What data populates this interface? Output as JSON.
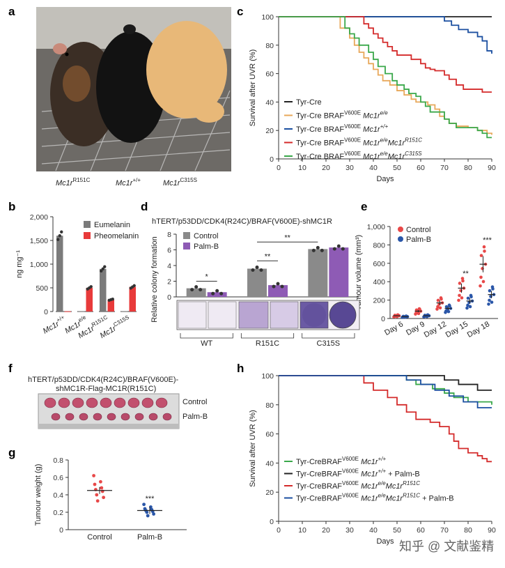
{
  "panel_labels": {
    "a": "a",
    "b": "b",
    "c": "c",
    "d": "d",
    "e": "e",
    "f": "f",
    "g": "g",
    "h": "h"
  },
  "panel_a": {
    "genotypes": [
      {
        "base": "Mc1r",
        "sup": "R151C"
      },
      {
        "base": "Mc1r",
        "sup": "+/+"
      },
      {
        "base": "Mc1r",
        "sup": "C315S"
      }
    ]
  },
  "panel_f": {
    "title_line1": "hTERT/p53DD/CDK4(R24C)/BRAF(V600E)-",
    "title_line2": "shMC1R-Flag-MC1R(R151C)",
    "row_labels": [
      "Control",
      "Palm-B"
    ]
  },
  "watermark": "知乎 @ 文献鉴精",
  "chart_data": [
    {
      "id": "c",
      "type": "line",
      "step": true,
      "title": "",
      "xlabel": "Days",
      "ylabel": "Survival after UVR (%)",
      "xlim": [
        0,
        90
      ],
      "ylim": [
        0,
        100
      ],
      "xticks": [
        "0",
        "10",
        "20",
        "30",
        "40",
        "50",
        "60",
        "70",
        "80",
        "90"
      ],
      "yticks": [
        "0",
        "20",
        "40",
        "60",
        "80",
        "100"
      ],
      "series": [
        {
          "name": "Tyr-Cre",
          "color": "#222222",
          "legend": {
            "pre": "Tyr-Cre",
            "sup": "",
            "mid": "",
            "it": "",
            "itsup": ""
          },
          "x": [
            0,
            90
          ],
          "y": [
            100,
            100
          ]
        },
        {
          "name": "Tyr-Cre BRAF V600E Mc1r e/e",
          "color": "#e8a85a",
          "legend": {
            "pre": "Tyr-Cre BRAF",
            "sup": "V600E",
            "mid": "Mc1r",
            "it": "",
            "itsup": "e/e"
          },
          "x": [
            0,
            23,
            26,
            30,
            32,
            34,
            36,
            38,
            40,
            42,
            44,
            47,
            50,
            53,
            56,
            58,
            60,
            63,
            66,
            68,
            70,
            72,
            75,
            80,
            84,
            88,
            90
          ],
          "y": [
            100,
            100,
            92,
            85,
            80,
            75,
            71,
            67,
            63,
            59,
            55,
            52,
            48,
            45,
            42,
            40,
            40,
            38,
            35,
            30,
            28,
            25,
            23,
            22,
            20,
            18,
            17
          ]
        },
        {
          "name": "Tyr-Cre BRAF V600E Mc1r +/+",
          "color": "#1b4fa0",
          "legend": {
            "pre": "Tyr-Cre BRAF",
            "sup": "V600E",
            "mid": "Mc1r",
            "it": "",
            "itsup": "+/+"
          },
          "x": [
            0,
            66,
            70,
            73,
            76,
            80,
            84,
            86,
            88,
            90
          ],
          "y": [
            100,
            100,
            97,
            94,
            91,
            89,
            86,
            83,
            76,
            74
          ]
        },
        {
          "name": "Tyr-Cre BRAF V600E Mc1r e/e Mc1r R151C",
          "color": "#d42a2a",
          "legend": {
            "pre": "Tyr-Cre BRAF",
            "sup": "V600E",
            "mid": "Mc1r",
            "it": "e/e",
            "itsup": "R151C"
          },
          "x": [
            0,
            34,
            36,
            38,
            40,
            42,
            44,
            46,
            48,
            50,
            53,
            56,
            60,
            62,
            64,
            66,
            70,
            72,
            75,
            78,
            86,
            90
          ],
          "y": [
            100,
            100,
            95,
            92,
            88,
            85,
            82,
            79,
            76,
            73,
            73,
            70,
            67,
            64,
            63,
            62,
            59,
            56,
            52,
            49,
            47,
            47
          ]
        },
        {
          "name": "Tyr-Cre BRAF V600E Mc1r e/e Mc1r C315S",
          "color": "#3aa84a",
          "legend": {
            "pre": "Tyr-Cre BRAF",
            "sup": "V600E",
            "mid": "Mc1r",
            "it": "e/e",
            "itsup": "C315S"
          },
          "x": [
            0,
            25,
            28,
            30,
            32,
            34,
            38,
            40,
            42,
            45,
            48,
            50,
            53,
            55,
            58,
            60,
            62,
            64,
            68,
            70,
            72,
            75,
            80,
            84,
            86,
            88,
            90
          ],
          "y": [
            100,
            100,
            92,
            88,
            85,
            80,
            75,
            70,
            65,
            60,
            55,
            52,
            49,
            46,
            44,
            40,
            37,
            33,
            33,
            28,
            25,
            22,
            22,
            20,
            18,
            15,
            15
          ]
        }
      ]
    },
    {
      "id": "b",
      "type": "bar",
      "title": "",
      "xlabel": "",
      "ylabel": "ng mg⁻¹",
      "ylim": [
        0,
        2000
      ],
      "yticks": [
        "0",
        "500",
        "1,000",
        "1,500",
        "2,000"
      ],
      "categories": [
        {
          "base": "Mc1r",
          "sup": "+/+"
        },
        {
          "base": "Mc1r",
          "sup": "e/e"
        },
        {
          "base": "Mc1r",
          "sup": "R151C"
        },
        {
          "base": "Mc1r",
          "sup": "C315S"
        }
      ],
      "series": [
        {
          "name": "Eumelanin",
          "color": "#7b7b7b",
          "values": [
            1600,
            5,
            900,
            5
          ]
        },
        {
          "name": "Pheomelanin",
          "color": "#e83a3a",
          "values": [
            5,
            500,
            250,
            520
          ]
        }
      ]
    },
    {
      "id": "d",
      "type": "bar",
      "title": "hTERT/p53DD/CDK4(R24C)/BRAF(V600E)-shMC1R",
      "xlabel": "",
      "ylabel": "Relative colony formation",
      "ylim": [
        0,
        8
      ],
      "yticks": [
        "0",
        "2",
        "4",
        "6",
        "8"
      ],
      "categories": [
        "WT",
        "R151C",
        "C315S"
      ],
      "series": [
        {
          "name": "Control",
          "color": "#8a8a8a",
          "values": [
            1.1,
            3.6,
            6.1
          ]
        },
        {
          "name": "Palm-B",
          "color": "#8e5bb5",
          "values": [
            0.6,
            1.5,
            6.3
          ]
        }
      ],
      "significance": [
        "*",
        "**",
        "**"
      ]
    },
    {
      "id": "e",
      "type": "scatter",
      "title": "",
      "xlabel": "",
      "ylabel": "Tumour volume (mm³)",
      "ylim": [
        0,
        1000
      ],
      "yticks": [
        "0",
        "200",
        "400",
        "600",
        "800",
        "1,000"
      ],
      "categories": [
        "Day 6",
        "Day 9",
        "Day 12",
        "Day 15",
        "Day 18"
      ],
      "series": [
        {
          "name": "Control",
          "color": "#e84848",
          "means": [
            30,
            80,
            170,
            330,
            590
          ]
        },
        {
          "name": "Palm-B",
          "color": "#2a56a8",
          "means": [
            20,
            30,
            110,
            190,
            260
          ]
        }
      ],
      "significance": [
        "",
        "",
        "",
        "**",
        "***"
      ]
    },
    {
      "id": "g",
      "type": "scatter",
      "title": "",
      "xlabel": "",
      "ylabel": "Tumour weight (g)",
      "ylim": [
        0,
        0.8
      ],
      "yticks": [
        "0",
        "0.2",
        "0.4",
        "0.6",
        "0.8"
      ],
      "categories": [
        "Control",
        "Palm-B"
      ],
      "series": [
        {
          "name": "Control",
          "color": "#e84848",
          "means": [
            0.45
          ],
          "points": [
            0.62,
            0.55,
            0.52,
            0.48,
            0.46,
            0.44,
            0.4,
            0.37,
            0.33
          ]
        },
        {
          "name": "Palm-B",
          "color": "#2a56a8",
          "means": [
            0.22
          ],
          "points": [
            0.29,
            0.26,
            0.24,
            0.23,
            0.22,
            0.21,
            0.2,
            0.18,
            0.16
          ]
        }
      ],
      "significance": [
        "",
        "***"
      ]
    },
    {
      "id": "h",
      "type": "line",
      "step": true,
      "title": "",
      "xlabel": "Days",
      "ylabel": "Survival after UVR (%)",
      "xlim": [
        0,
        90
      ],
      "ylim": [
        0,
        100
      ],
      "xticks": [
        "0",
        "10",
        "20",
        "30",
        "40",
        "50",
        "60",
        "70",
        "80",
        "90"
      ],
      "yticks": [
        "0",
        "20",
        "40",
        "60",
        "80",
        "100"
      ],
      "series": [
        {
          "name": "Tyr-CreBRAF V600E Mc1r +/+",
          "color": "#3aa84a",
          "legend": {
            "pre": "Tyr-CreBRAF",
            "sup": "V600E",
            "mid": "Mc1r",
            "it": "",
            "itsup": "+/+",
            "post": ""
          },
          "x": [
            0,
            50,
            54,
            58,
            65,
            70,
            74,
            80,
            90
          ],
          "y": [
            100,
            100,
            97,
            94,
            91,
            88,
            85,
            82,
            80
          ]
        },
        {
          "name": "Tyr-CreBRAF V600E Mc1r +/+ + Palm-B",
          "color": "#222222",
          "legend": {
            "pre": "Tyr-CreBRAF",
            "sup": "V600E",
            "mid": "Mc1r",
            "it": "",
            "itsup": "+/+",
            "post": " + Palm-B"
          },
          "x": [
            0,
            66,
            70,
            76,
            80,
            84,
            90
          ],
          "y": [
            100,
            100,
            97,
            94,
            94,
            90,
            90
          ]
        },
        {
          "name": "Tyr-CreBRAF V600E Mc1r e/e Mc1r R151C",
          "color": "#d42a2a",
          "legend": {
            "pre": "Tyr-CreBRAF",
            "sup": "V600E",
            "mid": "Mc1r",
            "it": "e/e",
            "itsup": "R151C",
            "post": ""
          },
          "x": [
            0,
            36,
            40,
            46,
            50,
            54,
            58,
            64,
            68,
            72,
            74,
            76,
            80,
            84,
            86,
            88,
            90
          ],
          "y": [
            100,
            95,
            90,
            85,
            80,
            75,
            70,
            68,
            65,
            60,
            55,
            50,
            47,
            45,
            43,
            41,
            41
          ]
        },
        {
          "name": "Tyr-CreBRAF V600E Mc1r e/e Mc1r R151C + Palm-B",
          "color": "#1b4fa0",
          "legend": {
            "pre": "Tyr-CreBRAF",
            "sup": "V600E",
            "mid": "Mc1r",
            "it": "e/e",
            "itsup": "R151C",
            "post": " + Palm-B"
          },
          "x": [
            0,
            50,
            54,
            60,
            66,
            72,
            78,
            84,
            90
          ],
          "y": [
            100,
            100,
            97,
            94,
            90,
            86,
            82,
            78,
            78
          ]
        }
      ]
    }
  ]
}
